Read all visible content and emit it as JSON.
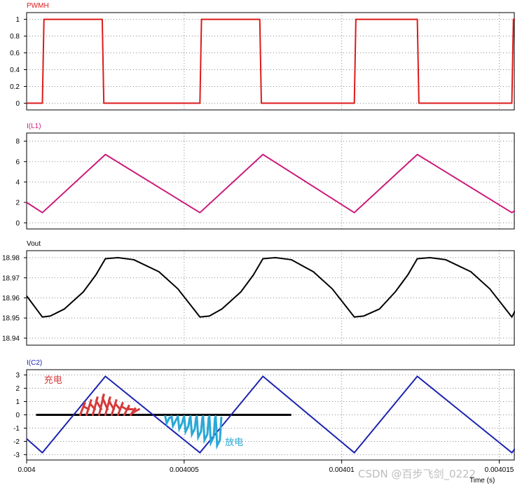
{
  "chart_data": {
    "type": "line",
    "x_axis": {
      "label": "Time (s)",
      "range": [
        0.004,
        0.0040155
      ],
      "ticks": [
        {
          "value": 0.004,
          "label": "0.004"
        },
        {
          "value": 0.004005,
          "label": "0.004005"
        },
        {
          "value": 0.00401,
          "label": "0.00401"
        },
        {
          "value": 0.004015,
          "label": "0.004015"
        }
      ]
    },
    "panels": [
      {
        "title": "PWMH",
        "color": "#dd1a1a",
        "ylim": [
          -0.08,
          1.08
        ],
        "yticks": [
          0,
          0.2,
          0.4,
          0.6,
          0.8,
          1
        ],
        "ytick_labels": [
          "0",
          "0.2",
          "0.4",
          "0.6",
          "0.8",
          "1"
        ],
        "points": [
          [
            0.004,
            0
          ],
          [
            0.0040005,
            0
          ],
          [
            0.00400055,
            1
          ],
          [
            0.0040024,
            1
          ],
          [
            0.00400245,
            0
          ],
          [
            0.0040055,
            0
          ],
          [
            0.00400555,
            1
          ],
          [
            0.0040074,
            1
          ],
          [
            0.00400745,
            0
          ],
          [
            0.0040104,
            0
          ],
          [
            0.00401045,
            1
          ],
          [
            0.0040124,
            1
          ],
          [
            0.00401245,
            0
          ],
          [
            0.0040154,
            0
          ],
          [
            0.00401545,
            1
          ],
          [
            0.0040155,
            1
          ]
        ]
      },
      {
        "title": "I(L1)",
        "color": "#cc1b7a",
        "ylim": [
          -0.6,
          8.8
        ],
        "yticks": [
          0,
          2,
          4,
          6,
          8
        ],
        "ytick_labels": [
          "0",
          "2",
          "4",
          "6",
          "8"
        ],
        "points": [
          [
            0.004,
            2.0
          ],
          [
            0.0040005,
            1.0
          ],
          [
            0.0040025,
            6.7
          ],
          [
            0.0040055,
            1.0
          ],
          [
            0.0040075,
            6.7
          ],
          [
            0.0040104,
            1.0
          ],
          [
            0.0040124,
            6.7
          ],
          [
            0.0040154,
            1.0
          ],
          [
            0.0040155,
            1.2
          ]
        ]
      },
      {
        "title": "Vout",
        "color": "#000000",
        "ylim": [
          18.9365,
          18.9835
        ],
        "yticks": [
          18.94,
          18.95,
          18.96,
          18.97,
          18.98
        ],
        "ytick_labels": [
          "18.94",
          "18.95",
          "18.96",
          "18.97",
          "18.98"
        ],
        "points": [
          [
            0.004,
            18.961
          ],
          [
            0.0040005,
            18.9505
          ],
          [
            0.00400075,
            18.951
          ],
          [
            0.0040012,
            18.9545
          ],
          [
            0.0040018,
            18.963
          ],
          [
            0.0040022,
            18.9715
          ],
          [
            0.0040025,
            18.9795
          ],
          [
            0.0040029,
            18.98
          ],
          [
            0.0040034,
            18.979
          ],
          [
            0.0040042,
            18.973
          ],
          [
            0.0040048,
            18.9645
          ],
          [
            0.0040052,
            18.9565
          ],
          [
            0.0040055,
            18.9505
          ],
          [
            0.0040058,
            18.951
          ],
          [
            0.0040062,
            18.9545
          ],
          [
            0.0040068,
            18.963
          ],
          [
            0.0040072,
            18.9715
          ],
          [
            0.0040075,
            18.9795
          ],
          [
            0.0040079,
            18.98
          ],
          [
            0.0040084,
            18.979
          ],
          [
            0.0040091,
            18.973
          ],
          [
            0.0040097,
            18.9645
          ],
          [
            0.0040101,
            18.9565
          ],
          [
            0.0040104,
            18.9505
          ],
          [
            0.0040107,
            18.951
          ],
          [
            0.0040112,
            18.9545
          ],
          [
            0.0040117,
            18.963
          ],
          [
            0.0040121,
            18.9715
          ],
          [
            0.0040124,
            18.9795
          ],
          [
            0.0040128,
            18.98
          ],
          [
            0.0040133,
            18.979
          ],
          [
            0.0040141,
            18.973
          ],
          [
            0.0040147,
            18.9645
          ],
          [
            0.0040151,
            18.9565
          ],
          [
            0.0040154,
            18.9505
          ],
          [
            0.0040155,
            18.9535
          ]
        ]
      },
      {
        "title": "I(C2)",
        "color": "#1c23b0",
        "ylim": [
          -3.4,
          3.4
        ],
        "yticks": [
          -3,
          -2,
          -1,
          0,
          1,
          2,
          3
        ],
        "ytick_labels": [
          "-3",
          "-2",
          "-1",
          "0",
          "1",
          "2",
          "3"
        ],
        "points": [
          [
            0.004,
            -1.8
          ],
          [
            0.0040005,
            -2.85
          ],
          [
            0.0040025,
            2.9
          ],
          [
            0.0040055,
            -2.85
          ],
          [
            0.0040075,
            2.9
          ],
          [
            0.0040104,
            -2.85
          ],
          [
            0.0040124,
            2.9
          ],
          [
            0.0040154,
            -2.85
          ],
          [
            0.0040155,
            -2.55
          ]
        ],
        "zero_line": {
          "from": 0.0040003,
          "to": 0.0040084,
          "value": 0,
          "color": "#000000"
        },
        "annotations": [
          {
            "text": "充电",
            "x": 0.00400055,
            "y": 2.4,
            "color": "#d63a3a"
          },
          {
            "text": "放电",
            "x": 0.0040063,
            "y": -2.3,
            "color": "#2aa8d6"
          }
        ]
      }
    ]
  },
  "watermark": "CSDN @百步飞剑_0222"
}
